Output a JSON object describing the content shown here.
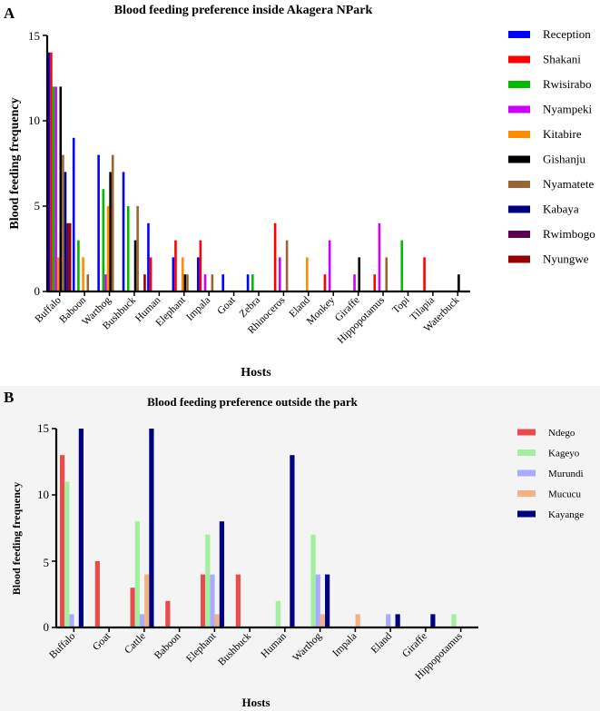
{
  "chart_data": [
    {
      "panel": "A",
      "type": "bar",
      "title": "Blood feeding preference inside Akagera NPark",
      "xlabel": "Hosts",
      "ylabel": "Blood feeding frequency",
      "ylim": [
        0,
        15
      ],
      "yticks": [
        "0",
        "5",
        "10",
        "15"
      ],
      "legend_position": "right",
      "categories": [
        "Buffalo",
        "Baboon",
        "Warthog",
        "Bushbuck",
        "Human",
        "Elephant",
        "Impala",
        "Goat",
        "Zebra",
        "Rhinoceros",
        "Eland",
        "Monkey",
        "Giraffe",
        "Hippopotamus",
        "Topi",
        "Tilapia",
        "Waterbuck"
      ],
      "series": [
        {
          "name": "Reception",
          "color": "#0000ff",
          "values": [
            14,
            9,
            8,
            7,
            4,
            2,
            2,
            1,
            1,
            0,
            0,
            0,
            0,
            0,
            0,
            0,
            0
          ]
        },
        {
          "name": "Shakani",
          "color": "#ff0000",
          "values": [
            14,
            0,
            0,
            0,
            2,
            3,
            3,
            0,
            0,
            4,
            0,
            1,
            0,
            1,
            0,
            2,
            0
          ]
        },
        {
          "name": "Rwisirabo",
          "color": "#00bb00",
          "values": [
            12,
            3,
            6,
            5,
            0,
            0,
            0,
            0,
            1,
            0,
            0,
            0,
            0,
            0,
            3,
            0,
            0
          ]
        },
        {
          "name": "Nyampeki",
          "color": "#cc00ff",
          "values": [
            12,
            0,
            1,
            0,
            0,
            0,
            1,
            0,
            0,
            2,
            0,
            3,
            1,
            4,
            0,
            0,
            0
          ]
        },
        {
          "name": "Kitabire",
          "color": "#ff8c00",
          "values": [
            2,
            2,
            5,
            0,
            0,
            2,
            0,
            0,
            0,
            0,
            2,
            0,
            0,
            0,
            0,
            0,
            0
          ]
        },
        {
          "name": "Gishanju",
          "color": "#000000",
          "values": [
            12,
            0,
            7,
            3,
            0,
            1,
            0,
            0,
            0,
            0,
            0,
            0,
            2,
            0,
            0,
            0,
            1
          ]
        },
        {
          "name": "Nyamatete",
          "color": "#996633",
          "values": [
            8,
            1,
            8,
            5,
            0,
            1,
            1,
            0,
            0,
            3,
            0,
            0,
            0,
            2,
            0,
            0,
            0
          ]
        },
        {
          "name": "Kabaya",
          "color": "#000080",
          "values": [
            7,
            0,
            0,
            0,
            0,
            0,
            0,
            0,
            0,
            0,
            0,
            0,
            0,
            0,
            0,
            0,
            0
          ]
        },
        {
          "name": "Rwimbogo",
          "color": "#5c0050",
          "values": [
            4,
            0,
            0,
            0,
            0,
            0,
            0,
            0,
            0,
            0,
            0,
            0,
            0,
            0,
            0,
            0,
            0
          ]
        },
        {
          "name": "Nyungwe",
          "color": "#990000",
          "values": [
            4,
            0,
            0,
            1,
            0,
            0,
            0,
            0,
            0,
            0,
            0,
            0,
            0,
            0,
            0,
            0,
            0
          ]
        }
      ]
    },
    {
      "panel": "B",
      "type": "bar",
      "title": "Blood feeding preference outside the park",
      "xlabel": "Hosts",
      "ylabel": "Blood feeding frequency",
      "ylim": [
        0,
        15
      ],
      "yticks": [
        "0",
        "5",
        "10",
        "15"
      ],
      "legend_position": "right",
      "categories": [
        "Buffalo",
        "Goat",
        "Cattle",
        "Baboon",
        "Elephant",
        "Bushbuck",
        "Human",
        "Warthog",
        "Impala",
        "Eland",
        "Giraffe",
        "Hippopotamus"
      ],
      "series": [
        {
          "name": "Ndego",
          "color": "#e84c4c",
          "values": [
            13,
            5,
            3,
            2,
            4,
            4,
            0,
            0,
            0,
            0,
            0,
            0
          ]
        },
        {
          "name": "Kageyo",
          "color": "#a0f0a0",
          "values": [
            11,
            0,
            8,
            0,
            7,
            0,
            2,
            7,
            0,
            0,
            0,
            1
          ]
        },
        {
          "name": "Murundi",
          "color": "#aaaaff",
          "values": [
            1,
            0,
            1,
            0,
            4,
            0,
            0,
            4,
            0,
            1,
            0,
            0
          ]
        },
        {
          "name": "Mucucu",
          "color": "#f4b183",
          "values": [
            0,
            0,
            4,
            0,
            1,
            0,
            0,
            1,
            1,
            0,
            0,
            0
          ]
        },
        {
          "name": "Kayange",
          "color": "#000080",
          "values": [
            15,
            0,
            15,
            0,
            8,
            0,
            13,
            4,
            0,
            1,
            1,
            0
          ]
        }
      ]
    }
  ]
}
